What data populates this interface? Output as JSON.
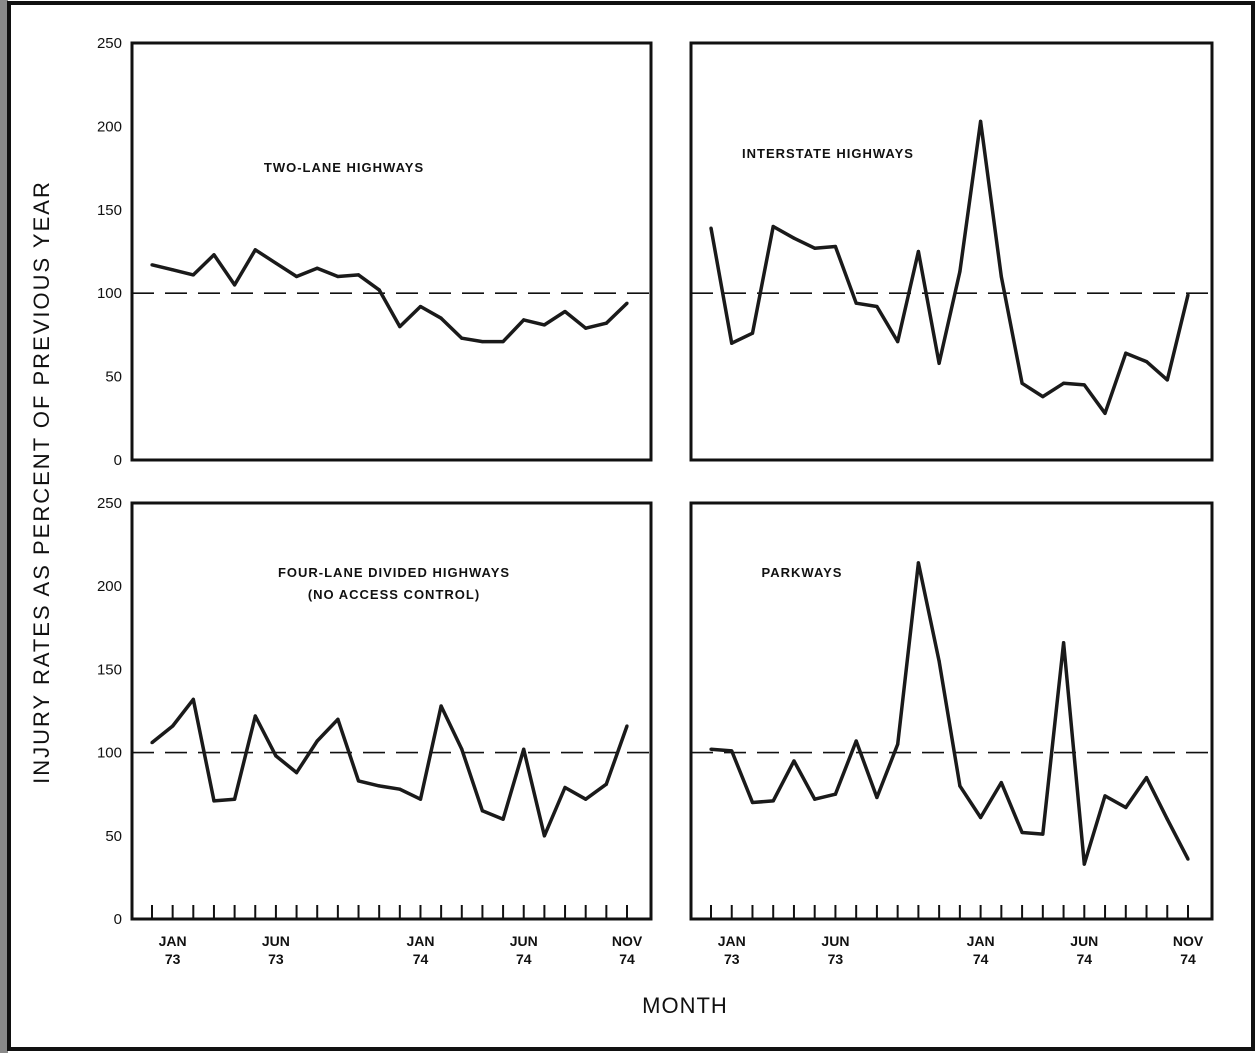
{
  "figure": {
    "ylabel": "INJURY RATES AS PERCENT OF PREVIOUS YEAR",
    "xlabel": "MONTH"
  },
  "chart_data": [
    {
      "type": "line",
      "title": "TWO-LANE HIGHWAYS",
      "ylim": [
        0,
        250
      ],
      "yticks": [
        "0",
        "50",
        "100",
        "150",
        "200",
        "250"
      ],
      "xtick_labels": [
        [
          "JAN",
          "73"
        ],
        [
          "JUN",
          "73"
        ],
        [
          "JAN",
          "74"
        ],
        [
          "JUN",
          "74"
        ],
        [
          "NOV",
          "74"
        ]
      ],
      "reference_line": 100,
      "x": [
        "DEC 72",
        "JAN 73",
        "FEB 73",
        "MAR 73",
        "APR 73",
        "MAY 73",
        "JUN 73",
        "JUL 73",
        "AUG 73",
        "SEP 73",
        "OCT 73",
        "NOV 73",
        "DEC 73",
        "JAN 74",
        "FEB 74",
        "MAR 74",
        "APR 74",
        "MAY 74",
        "JUN 74",
        "JUL 74",
        "AUG 74",
        "SEP 74",
        "OCT 74",
        "NOV 74"
      ],
      "values": [
        117,
        114,
        111,
        123,
        105,
        126,
        118,
        110,
        115,
        110,
        111,
        102,
        80,
        92,
        85,
        73,
        71,
        71,
        84,
        81,
        89,
        79,
        82,
        94
      ]
    },
    {
      "type": "line",
      "title": "INTERSTATE HIGHWAYS",
      "ylim": [
        0,
        250
      ],
      "yticks": [
        "0",
        "50",
        "100",
        "150",
        "200",
        "250"
      ],
      "xtick_labels": [
        [
          "JAN",
          "73"
        ],
        [
          "JUN",
          "73"
        ],
        [
          "JAN",
          "74"
        ],
        [
          "JUN",
          "74"
        ],
        [
          "NOV",
          "74"
        ]
      ],
      "reference_line": 100,
      "x": [
        "DEC 72",
        "JAN 73",
        "FEB 73",
        "MAR 73",
        "APR 73",
        "MAY 73",
        "JUN 73",
        "JUL 73",
        "AUG 73",
        "SEP 73",
        "OCT 73",
        "NOV 73",
        "DEC 73",
        "JAN 74",
        "FEB 74",
        "MAR 74",
        "APR 74",
        "MAY 74",
        "JUN 74",
        "JUL 74",
        "AUG 74",
        "SEP 74",
        "OCT 74",
        "NOV 74"
      ],
      "values": [
        139,
        70,
        76,
        140,
        133,
        127,
        128,
        94,
        92,
        71,
        125,
        58,
        113,
        203,
        110,
        46,
        38,
        46,
        45,
        28,
        64,
        59,
        48,
        99
      ]
    },
    {
      "type": "line",
      "title": "FOUR-LANE DIVIDED HIGHWAYS",
      "subtitle": "(NO ACCESS CONTROL)",
      "ylim": [
        0,
        250
      ],
      "yticks": [
        "0",
        "50",
        "100",
        "150",
        "200",
        "250"
      ],
      "xtick_labels": [
        [
          "JAN",
          "73"
        ],
        [
          "JUN",
          "73"
        ],
        [
          "JAN",
          "74"
        ],
        [
          "JUN",
          "74"
        ],
        [
          "NOV",
          "74"
        ]
      ],
      "reference_line": 100,
      "x": [
        "DEC 72",
        "JAN 73",
        "FEB 73",
        "MAR 73",
        "APR 73",
        "MAY 73",
        "JUN 73",
        "JUL 73",
        "AUG 73",
        "SEP 73",
        "OCT 73",
        "NOV 73",
        "DEC 73",
        "JAN 74",
        "FEB 74",
        "MAR 74",
        "APR 74",
        "MAY 74",
        "JUN 74",
        "JUL 74",
        "AUG 74",
        "SEP 74",
        "OCT 74",
        "NOV 74"
      ],
      "values": [
        106,
        116,
        132,
        71,
        72,
        122,
        98,
        88,
        107,
        120,
        83,
        80,
        78,
        72,
        128,
        102,
        65,
        60,
        102,
        50,
        79,
        72,
        81,
        116
      ]
    },
    {
      "type": "line",
      "title": "PARKWAYS",
      "ylim": [
        0,
        250
      ],
      "yticks": [
        "0",
        "50",
        "100",
        "150",
        "200",
        "250"
      ],
      "xtick_labels": [
        [
          "JAN",
          "73"
        ],
        [
          "JUN",
          "73"
        ],
        [
          "JAN",
          "74"
        ],
        [
          "JUN",
          "74"
        ],
        [
          "NOV",
          "74"
        ]
      ],
      "reference_line": 100,
      "x": [
        "DEC 72",
        "JAN 73",
        "FEB 73",
        "MAR 73",
        "APR 73",
        "MAY 73",
        "JUN 73",
        "JUL 73",
        "AUG 73",
        "SEP 73",
        "OCT 73",
        "NOV 73",
        "DEC 73",
        "JAN 74",
        "FEB 74",
        "MAR 74",
        "APR 74",
        "MAY 74",
        "JUN 74",
        "JUL 74",
        "AUG 74",
        "SEP 74",
        "OCT 74",
        "NOV 74"
      ],
      "values": [
        102,
        101,
        70,
        71,
        95,
        72,
        75,
        107,
        73,
        105,
        214,
        155,
        80,
        61,
        82,
        52,
        51,
        166,
        33,
        74,
        67,
        85,
        60,
        36
      ]
    }
  ]
}
